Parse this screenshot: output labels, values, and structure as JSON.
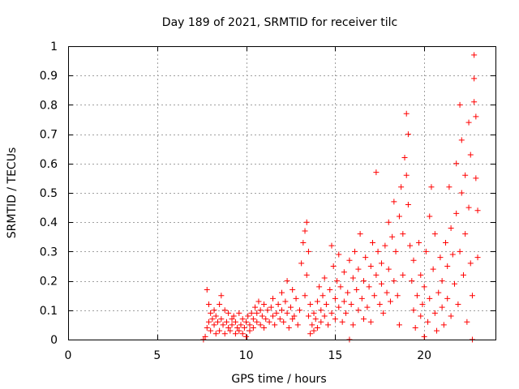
{
  "chart_data": {
    "type": "scatter",
    "title": "Day 189 of 2021, SRMTID for receiver tilc",
    "xlabel": "GPS time / hours",
    "ylabel": "SRMTID / TECUs",
    "xlim": [
      0,
      24
    ],
    "ylim": [
      0,
      1
    ],
    "xticks": [
      0,
      5,
      10,
      15,
      20
    ],
    "yticks": [
      0,
      0.1,
      0.2,
      0.3,
      0.4,
      0.5,
      0.6,
      0.7,
      0.8,
      0.9,
      1
    ],
    "grid": true,
    "marker": "plus",
    "color": "#ff0000",
    "series": [
      {
        "points": [
          [
            7.6,
            0.0
          ],
          [
            7.7,
            0.01
          ],
          [
            7.8,
            0.17
          ],
          [
            7.8,
            0.04
          ],
          [
            7.9,
            0.12
          ],
          [
            7.9,
            0.06
          ],
          [
            8.0,
            0.09
          ],
          [
            8.0,
            0.03
          ],
          [
            8.1,
            0.07
          ],
          [
            8.2,
            0.05
          ],
          [
            8.2,
            0.1
          ],
          [
            8.3,
            0.02
          ],
          [
            8.3,
            0.08
          ],
          [
            8.4,
            0.06
          ],
          [
            8.5,
            0.12
          ],
          [
            8.5,
            0.03
          ],
          [
            8.6,
            0.15
          ],
          [
            8.6,
            0.07
          ],
          [
            8.7,
            0.05
          ],
          [
            8.8,
            0.1
          ],
          [
            8.8,
            0.02
          ],
          [
            8.9,
            0.06
          ],
          [
            9.0,
            0.04
          ],
          [
            9.0,
            0.09
          ],
          [
            9.1,
            0.03
          ],
          [
            9.2,
            0.07
          ],
          [
            9.2,
            0.05
          ],
          [
            9.3,
            0.08
          ],
          [
            9.4,
            0.02
          ],
          [
            9.4,
            0.06
          ],
          [
            9.5,
            0.04
          ],
          [
            9.6,
            0.09
          ],
          [
            9.6,
            0.03
          ],
          [
            9.7,
            0.05
          ],
          [
            9.8,
            0.07
          ],
          [
            9.8,
            0.02
          ],
          [
            9.9,
            0.04
          ],
          [
            10.0,
            0.06
          ],
          [
            10.0,
            0.01
          ],
          [
            10.1,
            0.08
          ],
          [
            10.2,
            0.03
          ],
          [
            10.2,
            0.05
          ],
          [
            10.3,
            0.09
          ],
          [
            10.4,
            0.04
          ],
          [
            10.4,
            0.07
          ],
          [
            10.5,
            0.11
          ],
          [
            10.6,
            0.06
          ],
          [
            10.6,
            0.09
          ],
          [
            10.7,
            0.13
          ],
          [
            10.8,
            0.05
          ],
          [
            10.8,
            0.1
          ],
          [
            10.9,
            0.08
          ],
          [
            11.0,
            0.12
          ],
          [
            11.0,
            0.04
          ],
          [
            11.1,
            0.07
          ],
          [
            11.2,
            0.1
          ],
          [
            11.3,
            0.06
          ],
          [
            11.4,
            0.11
          ],
          [
            11.5,
            0.08
          ],
          [
            11.5,
            0.14
          ],
          [
            11.6,
            0.05
          ],
          [
            11.7,
            0.09
          ],
          [
            11.8,
            0.12
          ],
          [
            11.9,
            0.07
          ],
          [
            12.0,
            0.1
          ],
          [
            12.0,
            0.16
          ],
          [
            12.1,
            0.06
          ],
          [
            12.2,
            0.13
          ],
          [
            12.3,
            0.09
          ],
          [
            12.3,
            0.2
          ],
          [
            12.4,
            0.04
          ],
          [
            12.5,
            0.11
          ],
          [
            12.6,
            0.07
          ],
          [
            12.6,
            0.17
          ],
          [
            12.7,
            0.08
          ],
          [
            12.8,
            0.14
          ],
          [
            12.9,
            0.05
          ],
          [
            13.0,
            0.1
          ],
          [
            13.1,
            0.26
          ],
          [
            13.2,
            0.33
          ],
          [
            13.3,
            0.37
          ],
          [
            13.3,
            0.15
          ],
          [
            13.4,
            0.4
          ],
          [
            13.4,
            0.22
          ],
          [
            13.5,
            0.3
          ],
          [
            13.5,
            0.08
          ],
          [
            13.6,
            0.02
          ],
          [
            13.6,
            0.12
          ],
          [
            13.7,
            0.05
          ],
          [
            13.8,
            0.09
          ],
          [
            13.8,
            0.03
          ],
          [
            13.9,
            0.07
          ],
          [
            14.0,
            0.13
          ],
          [
            14.0,
            0.04
          ],
          [
            14.1,
            0.18
          ],
          [
            14.2,
            0.1
          ],
          [
            14.2,
            0.06
          ],
          [
            14.3,
            0.15
          ],
          [
            14.4,
            0.08
          ],
          [
            14.4,
            0.21
          ],
          [
            14.5,
            0.12
          ],
          [
            14.6,
            0.05
          ],
          [
            14.7,
            0.17
          ],
          [
            14.8,
            0.32
          ],
          [
            14.8,
            0.09
          ],
          [
            14.9,
            0.25
          ],
          [
            15.0,
            0.14
          ],
          [
            15.0,
            0.07
          ],
          [
            15.1,
            0.2
          ],
          [
            15.2,
            0.29
          ],
          [
            15.2,
            0.11
          ],
          [
            15.3,
            0.18
          ],
          [
            15.4,
            0.06
          ],
          [
            15.5,
            0.23
          ],
          [
            15.5,
            0.13
          ],
          [
            15.6,
            0.09
          ],
          [
            15.7,
            0.16
          ],
          [
            15.8,
            0.0
          ],
          [
            15.8,
            0.27
          ],
          [
            15.9,
            0.12
          ],
          [
            16.0,
            0.21
          ],
          [
            16.0,
            0.05
          ],
          [
            16.1,
            0.3
          ],
          [
            16.2,
            0.17
          ],
          [
            16.3,
            0.1
          ],
          [
            16.3,
            0.24
          ],
          [
            16.4,
            0.36
          ],
          [
            16.5,
            0.14
          ],
          [
            16.6,
            0.07
          ],
          [
            16.6,
            0.2
          ],
          [
            16.7,
            0.28
          ],
          [
            16.8,
            0.11
          ],
          [
            16.9,
            0.18
          ],
          [
            17.0,
            0.25
          ],
          [
            17.0,
            0.06
          ],
          [
            17.1,
            0.33
          ],
          [
            17.2,
            0.15
          ],
          [
            17.3,
            0.57
          ],
          [
            17.3,
            0.22
          ],
          [
            17.4,
            0.3
          ],
          [
            17.5,
            0.12
          ],
          [
            17.6,
            0.26
          ],
          [
            17.6,
            0.19
          ],
          [
            17.7,
            0.09
          ],
          [
            17.8,
            0.32
          ],
          [
            17.9,
            0.16
          ],
          [
            18.0,
            0.4
          ],
          [
            18.0,
            0.24
          ],
          [
            18.1,
            0.13
          ],
          [
            18.2,
            0.35
          ],
          [
            18.3,
            0.47
          ],
          [
            18.3,
            0.2
          ],
          [
            18.4,
            0.3
          ],
          [
            18.5,
            0.15
          ],
          [
            18.6,
            0.42
          ],
          [
            18.6,
            0.05
          ],
          [
            18.7,
            0.52
          ],
          [
            18.8,
            0.36
          ],
          [
            18.8,
            0.22
          ],
          [
            18.9,
            0.62
          ],
          [
            19.0,
            0.77
          ],
          [
            19.0,
            0.56
          ],
          [
            19.1,
            0.7
          ],
          [
            19.1,
            0.46
          ],
          [
            19.2,
            0.32
          ],
          [
            19.3,
            0.2
          ],
          [
            19.4,
            0.1
          ],
          [
            19.4,
            0.27
          ],
          [
            19.5,
            0.04
          ],
          [
            19.6,
            0.15
          ],
          [
            19.7,
            0.33
          ],
          [
            19.8,
            0.22
          ],
          [
            19.8,
            0.08
          ],
          [
            19.9,
            0.12
          ],
          [
            20.0,
            0.01
          ],
          [
            20.0,
            0.18
          ],
          [
            20.1,
            0.3
          ],
          [
            20.2,
            0.06
          ],
          [
            20.3,
            0.42
          ],
          [
            20.3,
            0.14
          ],
          [
            20.4,
            0.52
          ],
          [
            20.5,
            0.24
          ],
          [
            20.6,
            0.09
          ],
          [
            20.6,
            0.36
          ],
          [
            20.7,
            0.03
          ],
          [
            20.8,
            0.16
          ],
          [
            20.9,
            0.28
          ],
          [
            21.0,
            0.11
          ],
          [
            21.0,
            0.2
          ],
          [
            21.1,
            0.05
          ],
          [
            21.2,
            0.33
          ],
          [
            21.3,
            0.14
          ],
          [
            21.3,
            0.25
          ],
          [
            21.4,
            0.52
          ],
          [
            21.5,
            0.38
          ],
          [
            21.5,
            0.08
          ],
          [
            21.6,
            0.29
          ],
          [
            21.7,
            0.19
          ],
          [
            21.8,
            0.6
          ],
          [
            21.8,
            0.43
          ],
          [
            21.9,
            0.12
          ],
          [
            22.0,
            0.8
          ],
          [
            22.0,
            0.3
          ],
          [
            22.1,
            0.68
          ],
          [
            22.1,
            0.5
          ],
          [
            22.2,
            0.22
          ],
          [
            22.3,
            0.56
          ],
          [
            22.3,
            0.36
          ],
          [
            22.4,
            0.06
          ],
          [
            22.5,
            0.74
          ],
          [
            22.5,
            0.45
          ],
          [
            22.6,
            0.26
          ],
          [
            22.6,
            0.63
          ],
          [
            22.7,
            0.0
          ],
          [
            22.7,
            0.15
          ],
          [
            22.8,
            0.97
          ],
          [
            22.8,
            0.89
          ],
          [
            22.8,
            0.81
          ],
          [
            22.9,
            0.76
          ],
          [
            22.9,
            0.55
          ],
          [
            23.0,
            0.44
          ],
          [
            23.0,
            0.28
          ]
        ]
      }
    ]
  }
}
